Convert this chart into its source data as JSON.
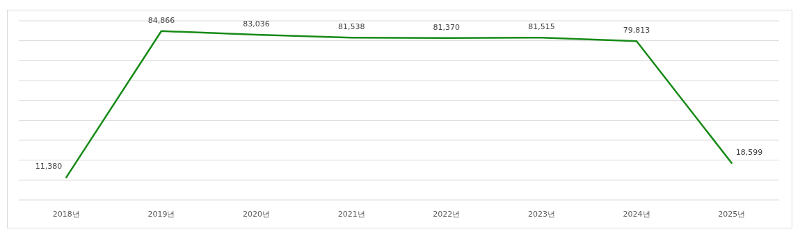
{
  "chart_data": {
    "type": "line",
    "categories": [
      "2018년",
      "2019년",
      "2020년",
      "2021년",
      "2022년",
      "2023년",
      "2024년",
      "2025년"
    ],
    "series": [
      {
        "color": "#168a16",
        "values": [
          11380,
          84866,
          83036,
          81538,
          81370,
          81515,
          79813,
          18599
        ],
        "value_labels": [
          "11,380",
          "84,866",
          "83,036",
          "81,538",
          "81,370",
          "81,515",
          "79,813",
          "18,599"
        ]
      }
    ],
    "grid": "y",
    "marker": "none",
    "line_style": "solid"
  }
}
